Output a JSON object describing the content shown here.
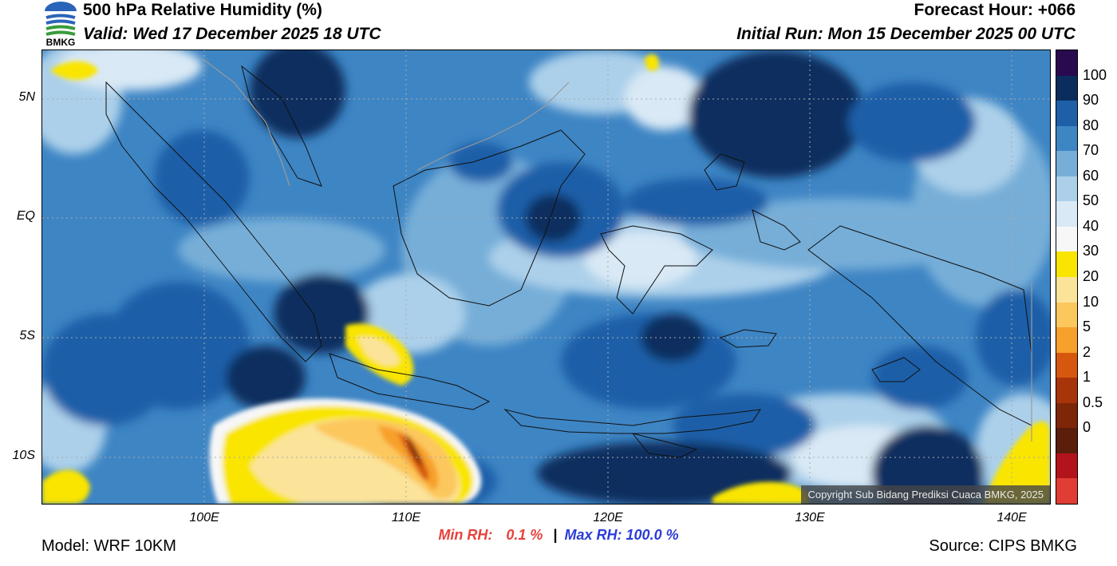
{
  "header": {
    "title": "500 hPa Relative Humidity (%)",
    "valid": "Valid: Wed 17 December 2025 18 UTC",
    "forecast_hour": "Forecast Hour: +066",
    "initial_run": "Initial Run: Mon 15 December 2025 00 UTC",
    "logo_text": "BMKG"
  },
  "map": {
    "lat_labels": [
      "5N",
      "EQ",
      "5S",
      "10S"
    ],
    "lon_labels": [
      "100E",
      "110E",
      "120E",
      "130E",
      "140E"
    ],
    "copyright": "Copyright Sub Bidang Prediksi Cuaca BMKG, 2025"
  },
  "colorbar": {
    "labels": [
      "100",
      "90",
      "80",
      "70",
      "60",
      "50",
      "40",
      "30",
      "20",
      "10",
      "5",
      "2",
      "1",
      "0.5",
      "0"
    ],
    "colors": [
      "#2a0a4e",
      "#0b2d5e",
      "#1f5fa8",
      "#3e85c4",
      "#76aed8",
      "#acd0ea",
      "#d9e9f5",
      "#f7f7f7",
      "#f9e500",
      "#fbe39a",
      "#fcc75d",
      "#f8a02c",
      "#d6580f",
      "#a8340a",
      "#7d2608",
      "#5a1e0b",
      "#b3141c",
      "#e23d35"
    ]
  },
  "stats": {
    "min_label": "Min RH:",
    "min_value": "0.1 %",
    "separator": "|",
    "max_label": "Max RH:",
    "max_value": "100.0 %"
  },
  "footer": {
    "model": "Model: WRF 10KM",
    "source": "Source: CIPS BMKG"
  }
}
